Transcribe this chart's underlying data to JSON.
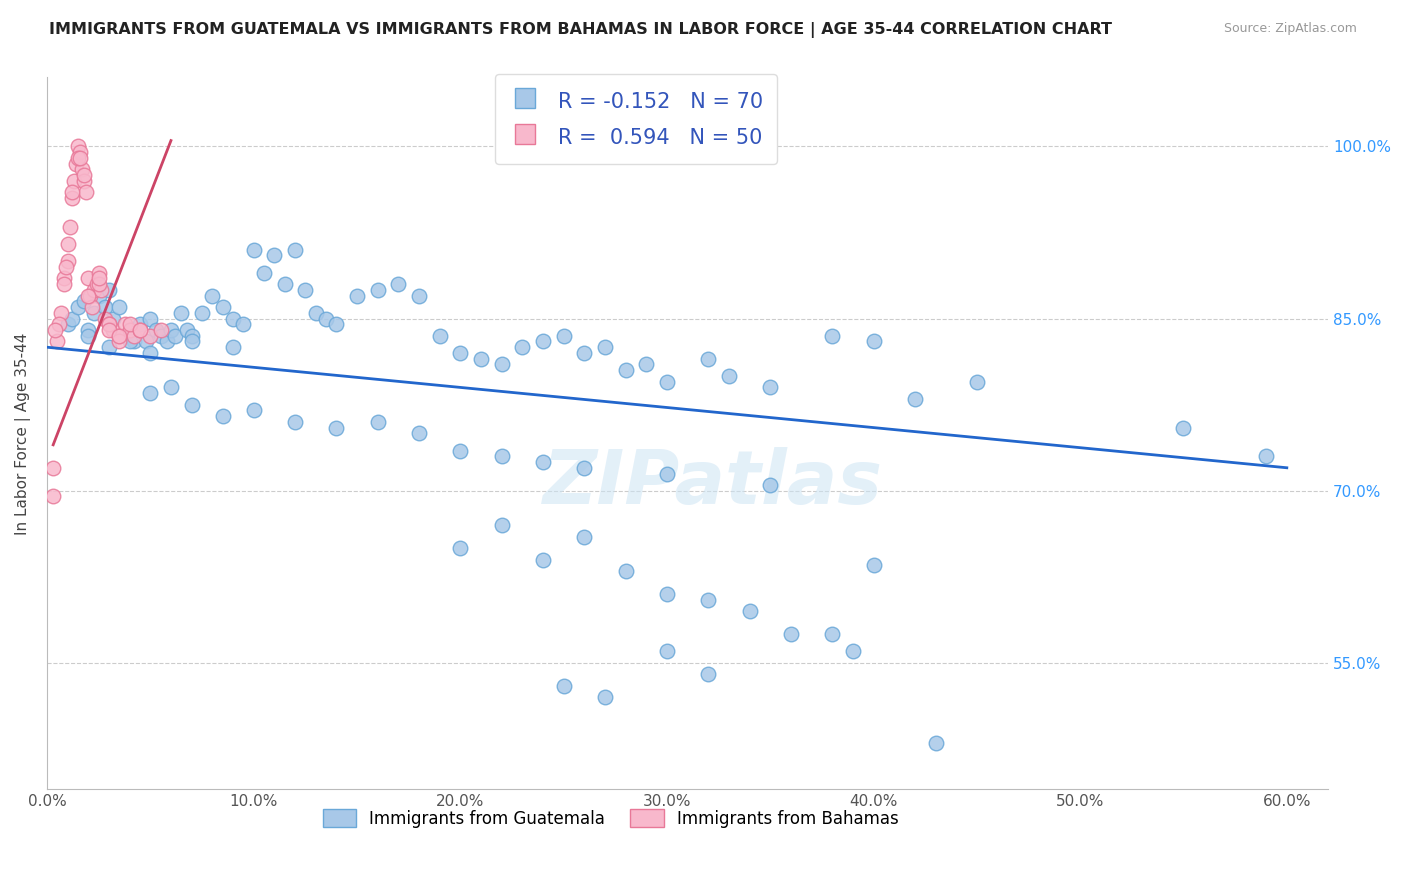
{
  "title": "IMMIGRANTS FROM GUATEMALA VS IMMIGRANTS FROM BAHAMAS IN LABOR FORCE | AGE 35-44 CORRELATION CHART",
  "source": "Source: ZipAtlas.com",
  "ylabel": "In Labor Force | Age 35-44",
  "x_tick_labels": [
    "0.0%",
    "10.0%",
    "20.0%",
    "30.0%",
    "40.0%",
    "50.0%",
    "60.0%"
  ],
  "x_tick_vals": [
    0.0,
    10.0,
    20.0,
    30.0,
    40.0,
    50.0,
    60.0
  ],
  "y_tick_labels": [
    "55.0%",
    "70.0%",
    "85.0%",
    "100.0%"
  ],
  "y_tick_vals": [
    55.0,
    70.0,
    85.0,
    100.0
  ],
  "xlim": [
    0.0,
    62.0
  ],
  "ylim": [
    44.0,
    106.0
  ],
  "blue_color": "#a8c8e8",
  "blue_edge": "#6aa8d8",
  "pink_color": "#f8b8cc",
  "pink_edge": "#e87898",
  "blue_line_color": "#2266cc",
  "pink_line_color": "#cc4466",
  "watermark": "ZIPatlas",
  "legend_label1": "Immigrants from Guatemala",
  "legend_label2": "Immigrants from Bahamas",
  "blue_trend_x0": 0.0,
  "blue_trend_y0": 82.5,
  "blue_trend_x1": 60.0,
  "blue_trend_y1": 72.0,
  "pink_trend_x0": 0.3,
  "pink_trend_y0": 74.0,
  "pink_trend_x1": 6.0,
  "pink_trend_y1": 100.5,
  "blue_scatter_x": [
    1.0,
    1.2,
    1.5,
    1.8,
    2.0,
    2.3,
    2.5,
    2.8,
    3.0,
    3.2,
    3.5,
    3.8,
    4.0,
    4.2,
    4.5,
    4.8,
    5.0,
    5.3,
    5.5,
    5.8,
    6.0,
    6.2,
    6.5,
    6.8,
    7.0,
    7.5,
    8.0,
    8.5,
    9.0,
    9.5,
    10.0,
    10.5,
    11.0,
    11.5,
    12.0,
    12.5,
    13.0,
    13.5,
    14.0,
    15.0,
    16.0,
    17.0,
    18.0,
    19.0,
    20.0,
    21.0,
    22.0,
    23.0,
    24.0,
    25.0,
    26.0,
    27.0,
    28.0,
    29.0,
    30.0,
    32.0,
    33.0,
    35.0,
    38.0,
    40.0,
    42.0,
    45.0,
    55.0,
    59.0,
    2.0,
    3.0,
    4.0,
    5.0,
    7.0,
    9.0
  ],
  "blue_scatter_y": [
    84.5,
    85.0,
    86.0,
    86.5,
    84.0,
    85.5,
    87.0,
    86.0,
    87.5,
    85.0,
    86.0,
    83.5,
    84.0,
    83.0,
    84.5,
    83.0,
    85.0,
    84.0,
    83.5,
    83.0,
    84.0,
    83.5,
    85.5,
    84.0,
    83.5,
    85.5,
    87.0,
    86.0,
    85.0,
    84.5,
    91.0,
    89.0,
    90.5,
    88.0,
    91.0,
    87.5,
    85.5,
    85.0,
    84.5,
    87.0,
    87.5,
    88.0,
    87.0,
    83.5,
    82.0,
    81.5,
    81.0,
    82.5,
    83.0,
    83.5,
    82.0,
    82.5,
    80.5,
    81.0,
    79.5,
    81.5,
    80.0,
    79.0,
    83.5,
    83.0,
    78.0,
    79.5,
    75.5,
    73.0,
    83.5,
    82.5,
    83.0,
    82.0,
    83.0,
    82.5
  ],
  "blue_scatter_x2": [
    5.0,
    6.0,
    7.0,
    8.5,
    10.0,
    12.0,
    14.0,
    16.0,
    18.0,
    20.0,
    22.0,
    24.0,
    26.0,
    30.0,
    35.0,
    40.0
  ],
  "blue_scatter_y2": [
    78.5,
    79.0,
    77.5,
    76.5,
    77.0,
    76.0,
    75.5,
    76.0,
    75.0,
    73.5,
    73.0,
    72.5,
    72.0,
    71.5,
    70.5,
    63.5
  ],
  "blue_scatter_x3": [
    20.0,
    22.0,
    24.0,
    26.0,
    28.0,
    30.0,
    32.0,
    34.0,
    36.0,
    39.0
  ],
  "blue_scatter_y3": [
    65.0,
    67.0,
    64.0,
    66.0,
    63.0,
    61.0,
    60.5,
    59.5,
    57.5,
    56.0
  ],
  "blue_scatter_x4": [
    25.0,
    27.0,
    30.0,
    32.0,
    38.0,
    43.0
  ],
  "blue_scatter_y4": [
    53.0,
    52.0,
    56.0,
    54.0,
    57.5,
    48.0
  ],
  "pink_scatter_x": [
    0.3,
    0.5,
    0.7,
    0.8,
    1.0,
    1.0,
    1.1,
    1.2,
    1.3,
    1.4,
    1.5,
    1.6,
    1.7,
    1.8,
    1.9,
    2.0,
    2.1,
    2.2,
    2.3,
    2.4,
    2.5,
    2.6,
    2.8,
    3.0,
    3.2,
    3.5,
    3.8,
    4.0,
    4.2,
    4.5,
    5.0,
    5.5,
    0.6,
    0.9,
    1.5,
    1.8,
    2.5,
    3.0,
    3.5,
    0.4,
    0.8,
    1.2,
    1.6,
    2.0,
    2.5,
    3.0,
    3.5,
    4.0,
    4.5,
    0.3
  ],
  "pink_scatter_y": [
    69.5,
    83.0,
    85.5,
    88.5,
    90.0,
    91.5,
    93.0,
    95.5,
    97.0,
    98.5,
    100.0,
    99.5,
    98.0,
    97.0,
    96.0,
    88.5,
    87.0,
    86.0,
    87.5,
    88.0,
    89.0,
    87.5,
    85.0,
    84.5,
    84.0,
    83.5,
    84.5,
    84.0,
    83.5,
    84.0,
    83.5,
    84.0,
    84.5,
    89.5,
    99.0,
    97.5,
    88.0,
    84.5,
    83.0,
    84.0,
    88.0,
    96.0,
    99.0,
    87.0,
    88.5,
    84.0,
    83.5,
    84.5,
    84.0,
    72.0
  ]
}
